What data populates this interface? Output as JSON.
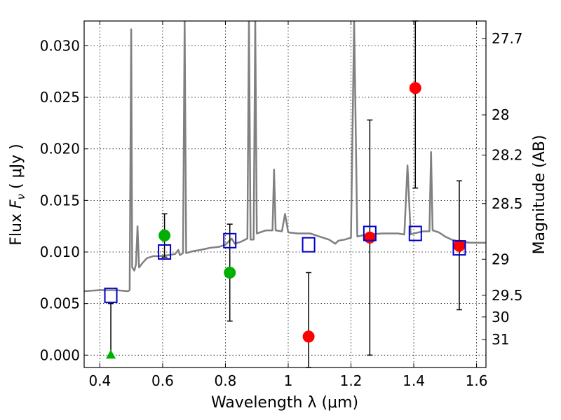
{
  "chart_data": {
    "type": "scatter",
    "xlabel": "Wavelength  λ (μm)",
    "ylabel": "Flux  F_ν  ( μJy )",
    "ylabel_parts": {
      "pre": "Flux  ",
      "sym": "F",
      "sub": "ν",
      "post": "  ( μJy )"
    },
    "y2label": "Magnitude (AB)",
    "xlim": [
      0.35,
      1.63
    ],
    "ylim": [
      -0.0012,
      0.0324
    ],
    "grid": true,
    "x_ticks": [
      0.4,
      0.6,
      0.8,
      1.0,
      1.2,
      1.4,
      1.6
    ],
    "x_tick_labels": [
      "0.4",
      "0.6",
      "0.8",
      "1",
      "1.2",
      "1.4",
      "1.6"
    ],
    "y_ticks": [
      0.0,
      0.005,
      0.01,
      0.015,
      0.02,
      0.025,
      0.03
    ],
    "y_tick_labels": [
      "0.000",
      "0.005",
      "0.010",
      "0.015",
      "0.020",
      "0.025",
      "0.030"
    ],
    "mag_ticks": [
      {
        "label": "27.7",
        "flux": 0.0307
      },
      {
        "label": "28",
        "flux": 0.0233
      },
      {
        "label": "28.2",
        "flux": 0.0194
      },
      {
        "label": "28.5",
        "flux": 0.0147
      },
      {
        "label": "29",
        "flux": 0.0093
      },
      {
        "label": "29.5",
        "flux": 0.0058
      },
      {
        "label": "30",
        "flux": 0.0037
      },
      {
        "label": "31",
        "flux": 0.0015
      }
    ],
    "template": {
      "name": "",
      "color": "#808080",
      "points": [
        [
          0.35,
          0.0062
        ],
        [
          0.4,
          0.0063
        ],
        [
          0.45,
          0.0063
        ],
        [
          0.49,
          0.0062
        ],
        [
          0.495,
          0.0063
        ],
        [
          0.5,
          0.0316
        ],
        [
          0.503,
          0.0085
        ],
        [
          0.51,
          0.0082
        ],
        [
          0.515,
          0.0088
        ],
        [
          0.52,
          0.0125
        ],
        [
          0.525,
          0.0085
        ],
        [
          0.535,
          0.0089
        ],
        [
          0.55,
          0.0094
        ],
        [
          0.57,
          0.0096
        ],
        [
          0.59,
          0.0096
        ],
        [
          0.62,
          0.0097
        ],
        [
          0.64,
          0.0098
        ],
        [
          0.65,
          0.0102
        ],
        [
          0.655,
          0.0097
        ],
        [
          0.665,
          0.0099
        ],
        [
          0.67,
          0.0324
        ],
        [
          0.675,
          0.0099
        ],
        [
          0.7,
          0.0101
        ],
        [
          0.72,
          0.0102
        ],
        [
          0.75,
          0.0104
        ],
        [
          0.78,
          0.0105
        ],
        [
          0.8,
          0.0107
        ],
        [
          0.82,
          0.0113
        ],
        [
          0.83,
          0.0108
        ],
        [
          0.85,
          0.011
        ],
        [
          0.87,
          0.0113
        ],
        [
          0.875,
          0.0324
        ],
        [
          0.88,
          0.0112
        ],
        [
          0.89,
          0.0112
        ],
        [
          0.895,
          0.0324
        ],
        [
          0.9,
          0.0118
        ],
        [
          0.93,
          0.0121
        ],
        [
          0.95,
          0.0121
        ],
        [
          0.955,
          0.018
        ],
        [
          0.96,
          0.0121
        ],
        [
          0.98,
          0.012
        ],
        [
          0.99,
          0.0137
        ],
        [
          1.0,
          0.0119
        ],
        [
          1.03,
          0.0118
        ],
        [
          1.07,
          0.0118
        ],
        [
          1.1,
          0.0115
        ],
        [
          1.13,
          0.0112
        ],
        [
          1.15,
          0.0108
        ],
        [
          1.16,
          0.0111
        ],
        [
          1.18,
          0.0112
        ],
        [
          1.2,
          0.0114
        ],
        [
          1.21,
          0.0324
        ],
        [
          1.22,
          0.0115
        ],
        [
          1.25,
          0.0117
        ],
        [
          1.3,
          0.0118
        ],
        [
          1.35,
          0.0118
        ],
        [
          1.37,
          0.0117
        ],
        [
          1.38,
          0.0184
        ],
        [
          1.39,
          0.0117
        ],
        [
          1.4,
          0.0118
        ],
        [
          1.43,
          0.012
        ],
        [
          1.45,
          0.012
        ],
        [
          1.455,
          0.0197
        ],
        [
          1.46,
          0.0121
        ],
        [
          1.48,
          0.0119
        ],
        [
          1.5,
          0.0115
        ],
        [
          1.52,
          0.0112
        ],
        [
          1.55,
          0.011
        ],
        [
          1.58,
          0.0109
        ],
        [
          1.63,
          0.0109
        ]
      ]
    },
    "model_photometry": {
      "name": "",
      "color": "#0000cc",
      "marker": "square",
      "points": [
        {
          "x": 0.435,
          "y": 0.0058
        },
        {
          "x": 0.606,
          "y": 0.01
        },
        {
          "x": 0.814,
          "y": 0.0111
        },
        {
          "x": 1.065,
          "y": 0.0107
        },
        {
          "x": 1.26,
          "y": 0.0118
        },
        {
          "x": 1.405,
          "y": 0.0118
        },
        {
          "x": 1.545,
          "y": 0.0104
        }
      ]
    },
    "observed_optical": {
      "name": "",
      "color": "#00b000",
      "marker": "circle",
      "points": [
        {
          "x": 0.606,
          "y": 0.0116,
          "err_low": 0.0095,
          "err_high": 0.0137
        },
        {
          "x": 0.814,
          "y": 0.008,
          "err_low": 0.0033,
          "err_high": 0.0127
        }
      ]
    },
    "observed_limit": {
      "name": "",
      "color": "#00b000",
      "marker": "triangle",
      "points": [
        {
          "x": 0.435,
          "y": 0.0,
          "err_low": 0.0,
          "err_high": 0.005
        }
      ]
    },
    "observed_nir": {
      "name": "",
      "color": "#ff0000",
      "marker": "circle",
      "points": [
        {
          "x": 1.065,
          "y": 0.0018,
          "err_low": -0.0012,
          "err_high": 0.008
        },
        {
          "x": 1.26,
          "y": 0.0114,
          "err_low": 0.0,
          "err_high": 0.0228
        },
        {
          "x": 1.405,
          "y": 0.0259,
          "err_low": 0.0162,
          "err_high": 0.0324
        },
        {
          "x": 1.545,
          "y": 0.0106,
          "err_low": 0.0044,
          "err_high": 0.0169
        }
      ]
    }
  }
}
